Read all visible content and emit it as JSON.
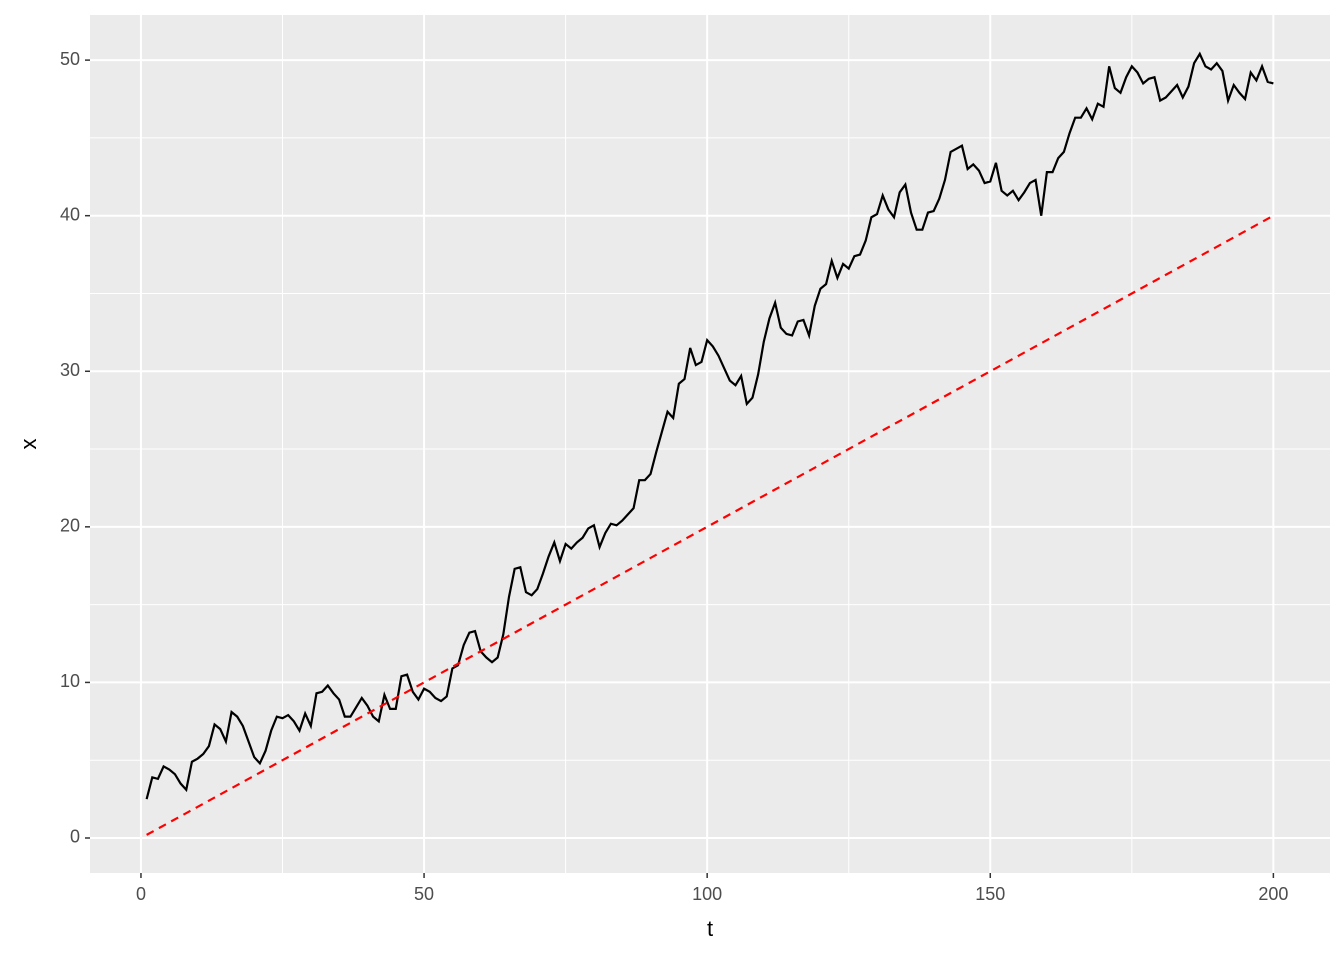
{
  "chart_data": {
    "type": "line",
    "xlabel": "t",
    "ylabel": "x",
    "xlim": [
      -9,
      210
    ],
    "ylim": [
      -2.25,
      52.9
    ],
    "xticks": [
      0,
      50,
      100,
      150,
      200
    ],
    "yticks": [
      0,
      10,
      20,
      30,
      40,
      50
    ],
    "xminor": [
      25,
      75,
      125,
      175
    ],
    "yminor": [
      5,
      15,
      25,
      35,
      45
    ],
    "grid": true,
    "background": "#ebebeb",
    "series": [
      {
        "color": "#000000",
        "dash": false,
        "x": [
          1,
          2,
          3,
          4,
          5,
          6,
          7,
          8,
          9,
          10,
          11,
          12,
          13,
          14,
          15,
          16,
          17,
          18,
          19,
          20,
          21,
          22,
          23,
          24,
          25,
          26,
          27,
          28,
          29,
          30,
          31,
          32,
          33,
          34,
          35,
          36,
          37,
          38,
          39,
          40,
          41,
          42,
          43,
          44,
          45,
          46,
          47,
          48,
          49,
          50,
          51,
          52,
          53,
          54,
          55,
          56,
          57,
          58,
          59,
          60,
          61,
          62,
          63,
          64,
          65,
          66,
          67,
          68,
          69,
          70,
          71,
          72,
          73,
          74,
          75,
          76,
          77,
          78,
          79,
          80,
          81,
          82,
          83,
          84,
          85,
          86,
          87,
          88,
          89,
          90,
          91,
          92,
          93,
          94,
          95,
          96,
          97,
          98,
          99,
          100,
          101,
          102,
          103,
          104,
          105,
          106,
          107,
          108,
          109,
          110,
          111,
          112,
          113,
          114,
          115,
          116,
          117,
          118,
          119,
          120,
          121,
          122,
          123,
          124,
          125,
          126,
          127,
          128,
          129,
          130,
          131,
          132,
          133,
          134,
          135,
          136,
          137,
          138,
          139,
          140,
          141,
          142,
          143,
          144,
          145,
          146,
          147,
          148,
          149,
          150,
          151,
          152,
          153,
          154,
          155,
          156,
          157,
          158,
          159,
          160,
          161,
          162,
          163,
          164,
          165,
          166,
          167,
          168,
          169,
          170,
          171,
          172,
          173,
          174,
          175,
          176,
          177,
          178,
          179,
          180,
          181,
          182,
          183,
          184,
          185,
          186,
          187,
          188,
          189,
          190,
          191,
          192,
          193,
          194,
          195,
          196,
          197,
          198,
          199,
          200
        ],
        "values": [
          2.5,
          3.9,
          3.8,
          4.6,
          4.4,
          4.1,
          3.5,
          3.1,
          4.9,
          5.1,
          5.4,
          5.9,
          7.3,
          7.0,
          6.2,
          8.1,
          7.8,
          7.2,
          6.2,
          5.2,
          4.8,
          5.6,
          6.9,
          7.8,
          7.7,
          7.9,
          7.5,
          6.9,
          8.0,
          7.2,
          9.3,
          9.4,
          9.8,
          9.3,
          8.9,
          7.8,
          7.8,
          8.4,
          9.0,
          8.5,
          7.8,
          7.5,
          9.2,
          8.3,
          8.3,
          10.4,
          10.5,
          9.4,
          8.9,
          9.6,
          9.4,
          9.0,
          8.8,
          9.1,
          10.9,
          11.1,
          12.4,
          13.2,
          13.3,
          12.0,
          11.6,
          11.3,
          11.6,
          13.1,
          15.5,
          17.3,
          17.4,
          15.8,
          15.6,
          16.0,
          17.0,
          18.1,
          19.0,
          17.8,
          18.9,
          18.6,
          19.0,
          19.3,
          19.9,
          20.1,
          18.7,
          19.6,
          20.2,
          20.1,
          20.4,
          20.8,
          21.2,
          23.0,
          23.0,
          23.4,
          24.8,
          26.1,
          27.4,
          27.0,
          29.2,
          29.5,
          31.5,
          30.4,
          30.6,
          32.0,
          31.6,
          31.0,
          30.2,
          29.4,
          29.1,
          29.7,
          27.9,
          28.3,
          29.8,
          31.9,
          33.4,
          34.4,
          32.8,
          32.4,
          32.3,
          33.2,
          33.3,
          32.3,
          34.2,
          35.3,
          35.6,
          37.1,
          36.0,
          36.9,
          36.6,
          37.4,
          37.5,
          38.4,
          39.9,
          40.1,
          41.3,
          40.4,
          39.9,
          41.5,
          42.0,
          40.2,
          39.1,
          39.1,
          40.2,
          40.3,
          41.1,
          42.3,
          44.1,
          44.3,
          44.5,
          43.0,
          43.3,
          42.9,
          42.1,
          42.2,
          43.4,
          41.6,
          41.3,
          41.6,
          41.0,
          41.5,
          42.1,
          42.3,
          40.0,
          42.8,
          42.8,
          43.7,
          44.1,
          45.3,
          46.3,
          46.3,
          46.9,
          46.2,
          47.2,
          47.0,
          49.6,
          48.2,
          47.9,
          48.9,
          49.6,
          49.2,
          48.5,
          48.8,
          48.9,
          47.4,
          47.6,
          48.0,
          48.4,
          47.6,
          48.3,
          49.8,
          50.4,
          49.6,
          49.4,
          49.8,
          49.3,
          47.4,
          48.4,
          47.9,
          47.5,
          49.2,
          48.7,
          49.6,
          48.6,
          48.5
        ]
      },
      {
        "color": "#ff0000",
        "dash": true,
        "x": [
          1,
          200
        ],
        "values": [
          0.2,
          40
        ]
      }
    ]
  }
}
